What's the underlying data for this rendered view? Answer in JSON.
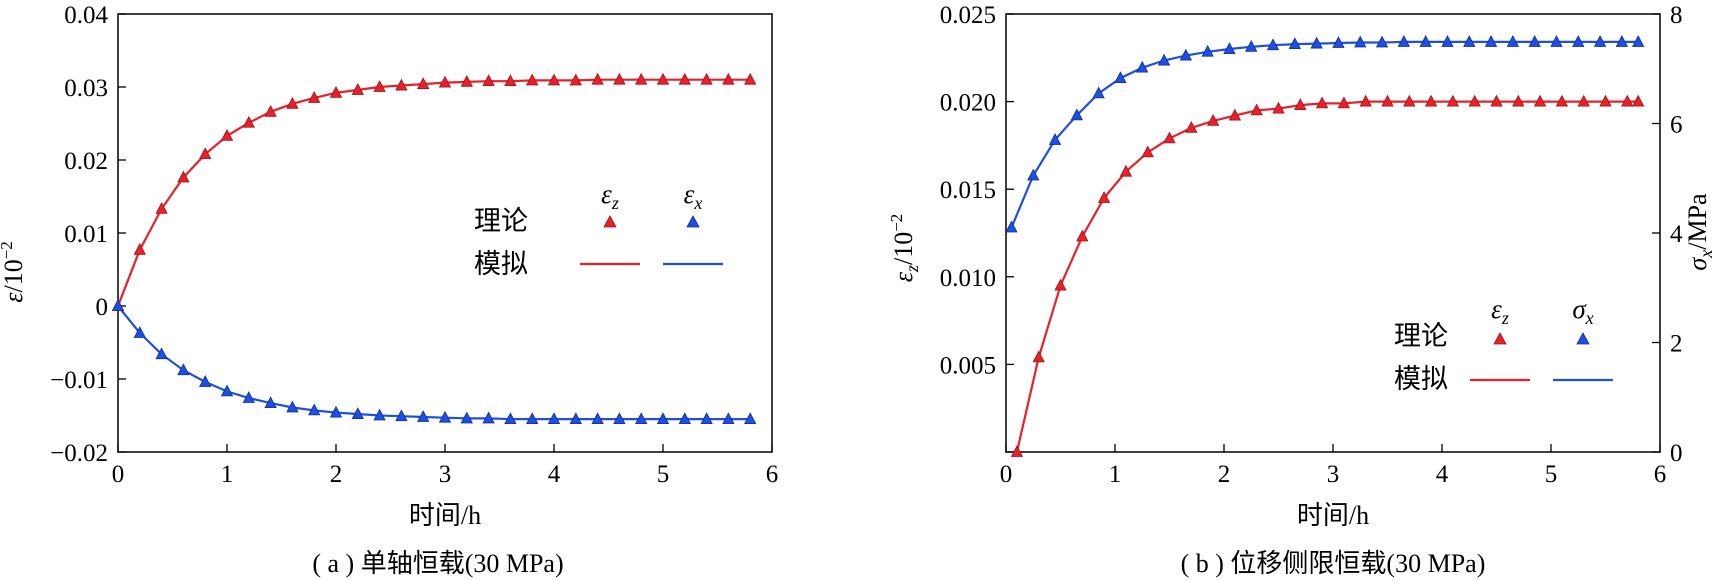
{
  "chart_data": [
    {
      "type": "line",
      "caption": "( a ) 单轴恒载(30 MPa)",
      "xlabel": "时间/h",
      "ylabel_sym": "ε",
      "ylabel_rest": "/10",
      "ylabel_exp": "−2",
      "xlim": [
        0,
        6
      ],
      "ylim": [
        -0.02,
        0.04
      ],
      "xticks": [
        "0",
        "1",
        "2",
        "3",
        "4",
        "5",
        "6"
      ],
      "yticks": [
        "−0.02",
        "−0.01",
        "0",
        "0.01",
        "0.02",
        "0.03",
        "0.04"
      ],
      "legend": {
        "row1": "理论",
        "row2": "模拟",
        "col1_sym": "ε",
        "col1_sub": "z",
        "col2_sym": "ε",
        "col2_sub": "x"
      },
      "colors": {
        "red": "#e8202a",
        "blue": "#1f4fe0"
      },
      "series": [
        {
          "color": "red",
          "x": [
            0,
            0.2,
            0.4,
            0.6,
            0.8,
            1.0,
            1.2,
            1.4,
            1.6,
            1.8,
            2.0,
            2.2,
            2.4,
            2.6,
            2.8,
            3.0,
            3.2,
            3.4,
            3.6,
            3.8,
            4.0,
            4.2,
            4.4,
            4.6,
            4.8,
            5.0,
            5.2,
            5.4,
            5.6,
            5.8
          ],
          "y": [
            0,
            0.0077,
            0.0133,
            0.0176,
            0.0208,
            0.0233,
            0.0251,
            0.0266,
            0.0277,
            0.0285,
            0.0292,
            0.0296,
            0.03,
            0.0302,
            0.0304,
            0.0306,
            0.0307,
            0.0308,
            0.0308,
            0.0309,
            0.0309,
            0.0309,
            0.031,
            0.031,
            0.031,
            0.031,
            0.031,
            0.031,
            0.031,
            0.031
          ]
        },
        {
          "color": "blue",
          "x": [
            0,
            0.2,
            0.4,
            0.6,
            0.8,
            1.0,
            1.2,
            1.4,
            1.6,
            1.8,
            2.0,
            2.2,
            2.4,
            2.6,
            2.8,
            3.0,
            3.2,
            3.4,
            3.6,
            3.8,
            4.0,
            4.2,
            4.4,
            4.6,
            4.8,
            5.0,
            5.2,
            5.4,
            5.6,
            5.8
          ],
          "y": [
            0,
            -0.0037,
            -0.0066,
            -0.0088,
            -0.0104,
            -0.0117,
            -0.0126,
            -0.0133,
            -0.0139,
            -0.0143,
            -0.0146,
            -0.0148,
            -0.015,
            -0.0151,
            -0.0152,
            -0.0153,
            -0.0154,
            -0.0154,
            -0.0155,
            -0.0155,
            -0.0155,
            -0.0155,
            -0.0155,
            -0.0155,
            -0.0155,
            -0.0155,
            -0.0155,
            -0.0155,
            -0.0155,
            -0.0155
          ]
        }
      ]
    },
    {
      "type": "line",
      "caption": "( b ) 位移侧限恒载(30 MPa)",
      "xlabel": "时间/h",
      "ylabel_sym": "ε",
      "ylabel_sub": "z",
      "ylabel_rest": "/10",
      "ylabel_exp": "−2",
      "y2label_sym": "σ",
      "y2label_sub": "x",
      "y2label_rest": "/MPa",
      "xlim": [
        0,
        6
      ],
      "ylim": [
        0,
        0.025
      ],
      "y2lim": [
        0,
        8
      ],
      "xticks": [
        "0",
        "1",
        "2",
        "3",
        "4",
        "5",
        "6"
      ],
      "yticks": [
        "",
        "0.005",
        "0.010",
        "0.015",
        "0.020",
        "0.025"
      ],
      "y2ticks": [
        "0",
        "2",
        "4",
        "6",
        "8"
      ],
      "legend": {
        "row1": "理论",
        "row2": "模拟",
        "col1_sym": "ε",
        "col1_sub": "z",
        "col2_sym": "σ",
        "col2_sub": "x"
      },
      "colors": {
        "red": "#e8202a",
        "blue": "#1f4fe0"
      },
      "series": [
        {
          "color": "red",
          "axis": "left",
          "x": [
            0.1,
            0.3,
            0.5,
            0.7,
            0.9,
            1.1,
            1.3,
            1.5,
            1.7,
            1.9,
            2.1,
            2.3,
            2.5,
            2.7,
            2.9,
            3.1,
            3.3,
            3.5,
            3.7,
            3.9,
            4.1,
            4.3,
            4.5,
            4.7,
            4.9,
            5.1,
            5.3,
            5.5,
            5.7,
            5.8
          ],
          "y": [
            0,
            0.0054,
            0.0095,
            0.0123,
            0.0145,
            0.016,
            0.0171,
            0.0179,
            0.0185,
            0.0189,
            0.0192,
            0.0195,
            0.0196,
            0.0198,
            0.0199,
            0.0199,
            0.02,
            0.02,
            0.02,
            0.02,
            0.02,
            0.02,
            0.02,
            0.02,
            0.02,
            0.02,
            0.02,
            0.02,
            0.02,
            0.02
          ]
        },
        {
          "color": "blue",
          "axis": "right",
          "x": [
            0.05,
            0.25,
            0.45,
            0.65,
            0.85,
            1.05,
            1.25,
            1.45,
            1.65,
            1.85,
            2.05,
            2.25,
            2.45,
            2.65,
            2.85,
            3.05,
            3.25,
            3.45,
            3.65,
            3.85,
            4.05,
            4.25,
            4.45,
            4.65,
            4.85,
            5.05,
            5.25,
            5.45,
            5.65,
            5.8
          ],
          "y": [
            4.1,
            5.05,
            5.7,
            6.15,
            6.55,
            6.83,
            7.02,
            7.15,
            7.24,
            7.31,
            7.36,
            7.4,
            7.43,
            7.45,
            7.46,
            7.47,
            7.48,
            7.48,
            7.49,
            7.49,
            7.49,
            7.49,
            7.49,
            7.49,
            7.49,
            7.49,
            7.49,
            7.49,
            7.49,
            7.49
          ]
        }
      ]
    }
  ]
}
